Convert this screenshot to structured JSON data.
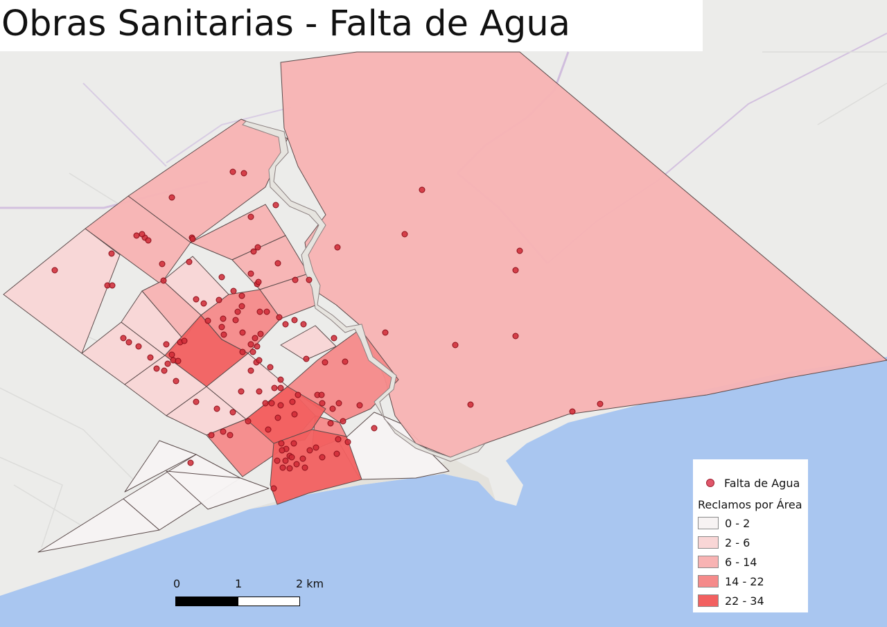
{
  "title": "Obras Sanitarias - Falta de Agua",
  "colors": {
    "land": "#ececea",
    "sea": "#a9c6f0",
    "sand": "#e6e4df",
    "boundary": "#5a4a4a",
    "point_fill": "#cf2a36",
    "point_stroke": "#8b0f1a",
    "road_major": "#cdb6dc"
  },
  "legend": {
    "point_layer": "Falta de Agua",
    "heading": "Reclamos por Área",
    "classes": [
      {
        "label": "0 - 2",
        "color": "#f7f3f3"
      },
      {
        "label": "2 - 6",
        "color": "#f9d6d6"
      },
      {
        "label": "6 - 14",
        "color": "#f8b3b3"
      },
      {
        "label": "14 - 22",
        "color": "#f58a8a"
      },
      {
        "label": "22 - 34",
        "color": "#f26060"
      }
    ]
  },
  "scale": {
    "labels": [
      "0",
      "1",
      "2 km"
    ]
  },
  "zones": [
    {
      "cls": 0,
      "pts": [
        [
          55,
          797
        ],
        [
          178,
          720
        ],
        [
          230,
          765
        ]
      ]
    },
    {
      "cls": 0,
      "pts": [
        [
          178,
          720
        ],
        [
          230,
          765
        ],
        [
          347,
          690
        ],
        [
          283,
          656
        ]
      ]
    },
    {
      "cls": 0,
      "pts": [
        [
          230,
          636
        ],
        [
          283,
          656
        ],
        [
          180,
          710
        ]
      ]
    },
    {
      "cls": 0,
      "pts": [
        [
          240,
          680
        ],
        [
          347,
          690
        ],
        [
          388,
          705
        ],
        [
          300,
          735
        ]
      ]
    },
    {
      "cls": 0,
      "pts": [
        [
          490,
          640
        ],
        [
          540,
          595
        ],
        [
          580,
          612
        ],
        [
          648,
          680
        ],
        [
          600,
          690
        ],
        [
          520,
          692
        ]
      ]
    },
    {
      "cls": 1,
      "pts": [
        [
          5,
          425
        ],
        [
          123,
          330
        ],
        [
          173,
          368
        ],
        [
          118,
          510
        ]
      ]
    },
    {
      "cls": 1,
      "pts": [
        [
          118,
          510
        ],
        [
          175,
          465
        ],
        [
          238,
          513
        ],
        [
          180,
          555
        ]
      ]
    },
    {
      "cls": 1,
      "pts": [
        [
          180,
          555
        ],
        [
          238,
          513
        ],
        [
          298,
          558
        ],
        [
          240,
          600
        ]
      ]
    },
    {
      "cls": 1,
      "pts": [
        [
          240,
          600
        ],
        [
          298,
          558
        ],
        [
          355,
          605
        ],
        [
          298,
          628
        ]
      ]
    },
    {
      "cls": 1,
      "pts": [
        [
          175,
          465
        ],
        [
          205,
          420
        ],
        [
          265,
          490
        ],
        [
          238,
          513
        ]
      ]
    },
    {
      "cls": 1,
      "pts": [
        [
          298,
          558
        ],
        [
          358,
          510
        ],
        [
          415,
          558
        ],
        [
          355,
          605
        ]
      ]
    },
    {
      "cls": 1,
      "pts": [
        [
          235,
          405
        ],
        [
          278,
          370
        ],
        [
          330,
          425
        ],
        [
          290,
          455
        ]
      ]
    },
    {
      "cls": 1,
      "pts": [
        [
          405,
          498
        ],
        [
          455,
          470
        ],
        [
          485,
          500
        ],
        [
          440,
          520
        ]
      ]
    },
    {
      "cls": 2,
      "pts": [
        [
          185,
          283
        ],
        [
          255,
          235
        ],
        [
          348,
          172
        ],
        [
          415,
          200
        ],
        [
          383,
          270
        ],
        [
          305,
          328
        ],
        [
          275,
          350
        ]
      ]
    },
    {
      "cls": 2,
      "pts": [
        [
          123,
          330
        ],
        [
          185,
          283
        ],
        [
          275,
          350
        ],
        [
          232,
          410
        ]
      ]
    },
    {
      "cls": 2,
      "pts": [
        [
          275,
          350
        ],
        [
          383,
          295
        ],
        [
          412,
          340
        ],
        [
          335,
          375
        ]
      ]
    },
    {
      "cls": 2,
      "pts": [
        [
          335,
          375
        ],
        [
          412,
          340
        ],
        [
          445,
          395
        ],
        [
          375,
          418
        ]
      ]
    },
    {
      "cls": 2,
      "pts": [
        [
          205,
          420
        ],
        [
          235,
          405
        ],
        [
          290,
          455
        ],
        [
          265,
          490
        ]
      ]
    },
    {
      "cls": 2,
      "pts": [
        [
          375,
          418
        ],
        [
          445,
          395
        ],
        [
          457,
          440
        ],
        [
          405,
          460
        ]
      ]
    },
    {
      "cls": 2,
      "pts": [
        [
          405,
          90
        ],
        [
          515,
          75
        ],
        [
          750,
          75
        ],
        [
          1280,
          520
        ],
        [
          1140,
          545
        ],
        [
          1020,
          570
        ],
        [
          820,
          598
        ],
        [
          700,
          640
        ],
        [
          650,
          660
        ],
        [
          600,
          640
        ],
        [
          570,
          600
        ],
        [
          555,
          545
        ],
        [
          520,
          470
        ],
        [
          485,
          440
        ],
        [
          455,
          420
        ],
        [
          445,
          380
        ],
        [
          440,
          350
        ],
        [
          470,
          310
        ],
        [
          430,
          240
        ],
        [
          410,
          185
        ]
      ]
    },
    {
      "cls": 3,
      "pts": [
        [
          290,
          455
        ],
        [
          330,
          425
        ],
        [
          375,
          418
        ],
        [
          405,
          460
        ],
        [
          358,
          510
        ],
        [
          320,
          490
        ]
      ]
    },
    {
      "cls": 3,
      "pts": [
        [
          415,
          558
        ],
        [
          458,
          520
        ],
        [
          520,
          475
        ],
        [
          575,
          548
        ],
        [
          535,
          590
        ],
        [
          490,
          610
        ]
      ]
    },
    {
      "cls": 3,
      "pts": [
        [
          298,
          628
        ],
        [
          355,
          605
        ],
        [
          415,
          558
        ],
        [
          455,
          600
        ],
        [
          420,
          640
        ],
        [
          350,
          688
        ]
      ]
    },
    {
      "cls": 3,
      "pts": [
        [
          455,
          600
        ],
        [
          490,
          610
        ],
        [
          500,
          630
        ],
        [
          450,
          650
        ]
      ]
    },
    {
      "cls": 4,
      "pts": [
        [
          238,
          513
        ],
        [
          290,
          455
        ],
        [
          320,
          490
        ],
        [
          358,
          510
        ],
        [
          298,
          558
        ]
      ]
    },
    {
      "cls": 4,
      "pts": [
        [
          355,
          605
        ],
        [
          415,
          558
        ],
        [
          470,
          590
        ],
        [
          440,
          635
        ],
        [
          395,
          640
        ]
      ]
    },
    {
      "cls": 4,
      "pts": [
        [
          395,
          640
        ],
        [
          450,
          620
        ],
        [
          500,
          630
        ],
        [
          522,
          692
        ],
        [
          445,
          712
        ],
        [
          400,
          728
        ],
        [
          390,
          700
        ]
      ]
    }
  ],
  "points": [
    [
      336,
      248
    ],
    [
      352,
      250
    ],
    [
      398,
      296
    ],
    [
      248,
      285
    ],
    [
      362,
      313
    ],
    [
      277,
      343
    ],
    [
      197,
      340
    ],
    [
      209,
      343
    ],
    [
      214,
      347
    ],
    [
      205,
      338
    ],
    [
      79,
      390
    ],
    [
      155,
      412
    ],
    [
      162,
      412
    ],
    [
      161,
      366
    ],
    [
      234,
      381
    ],
    [
      236,
      405
    ],
    [
      273,
      378
    ],
    [
      278,
      345
    ],
    [
      366,
      363
    ],
    [
      372,
      357
    ],
    [
      401,
      380
    ],
    [
      362,
      395
    ],
    [
      371,
      410
    ],
    [
      373,
      407
    ],
    [
      426,
      404
    ],
    [
      446,
      404
    ],
    [
      337,
      420
    ],
    [
      320,
      400
    ],
    [
      283,
      432
    ],
    [
      294,
      438
    ],
    [
      316,
      433
    ],
    [
      349,
      427
    ],
    [
      349,
      442
    ],
    [
      343,
      450
    ],
    [
      322,
      460
    ],
    [
      300,
      463
    ],
    [
      320,
      472
    ],
    [
      323,
      483
    ],
    [
      340,
      462
    ],
    [
      350,
      480
    ],
    [
      368,
      488
    ],
    [
      376,
      482
    ],
    [
      375,
      450
    ],
    [
      385,
      450
    ],
    [
      403,
      458
    ],
    [
      412,
      468
    ],
    [
      425,
      462
    ],
    [
      438,
      468
    ],
    [
      362,
      497
    ],
    [
      371,
      500
    ],
    [
      365,
      508
    ],
    [
      350,
      508
    ],
    [
      362,
      535
    ],
    [
      370,
      523
    ],
    [
      374,
      520
    ],
    [
      390,
      530
    ],
    [
      405,
      548
    ],
    [
      405,
      560
    ],
    [
      396,
      560
    ],
    [
      392,
      582
    ],
    [
      374,
      565
    ],
    [
      383,
      582
    ],
    [
      348,
      565
    ],
    [
      336,
      595
    ],
    [
      313,
      590
    ],
    [
      283,
      580
    ],
    [
      305,
      628
    ],
    [
      322,
      623
    ],
    [
      332,
      628
    ],
    [
      358,
      608
    ],
    [
      387,
      620
    ],
    [
      405,
      585
    ],
    [
      401,
      603
    ],
    [
      422,
      580
    ],
    [
      425,
      598
    ],
    [
      430,
      570
    ],
    [
      442,
      518
    ],
    [
      469,
      523
    ],
    [
      458,
      570
    ],
    [
      465,
      582
    ],
    [
      480,
      590
    ],
    [
      489,
      582
    ],
    [
      495,
      608
    ],
    [
      519,
      585
    ],
    [
      502,
      638
    ],
    [
      464,
      570
    ],
    [
      477,
      611
    ],
    [
      488,
      634
    ],
    [
      437,
      662
    ],
    [
      456,
      646
    ],
    [
      447,
      650
    ],
    [
      406,
      640
    ],
    [
      413,
      648
    ],
    [
      418,
      658
    ],
    [
      424,
      640
    ],
    [
      412,
      665
    ],
    [
      400,
      665
    ],
    [
      418,
      676
    ],
    [
      440,
      675
    ],
    [
      465,
      660
    ],
    [
      486,
      655
    ],
    [
      408,
      675
    ],
    [
      428,
      670
    ],
    [
      421,
      660
    ],
    [
      395,
      705
    ],
    [
      407,
      650
    ],
    [
      240,
      497
    ],
    [
      260,
      494
    ],
    [
      266,
      492
    ],
    [
      248,
      512
    ],
    [
      250,
      520
    ],
    [
      242,
      525
    ],
    [
      257,
      521
    ],
    [
      254,
      550
    ],
    [
      237,
      535
    ],
    [
      217,
      516
    ],
    [
      200,
      500
    ],
    [
      186,
      494
    ],
    [
      178,
      488
    ],
    [
      226,
      532
    ],
    [
      275,
      668
    ],
    [
      498,
      522
    ],
    [
      482,
      488
    ],
    [
      487,
      357
    ],
    [
      584,
      338
    ],
    [
      609,
      274
    ],
    [
      750,
      362
    ],
    [
      744,
      390
    ],
    [
      744,
      485
    ],
    [
      657,
      498
    ],
    [
      556,
      480
    ],
    [
      679,
      584
    ],
    [
      826,
      594
    ],
    [
      866,
      583
    ],
    [
      540,
      618
    ]
  ]
}
